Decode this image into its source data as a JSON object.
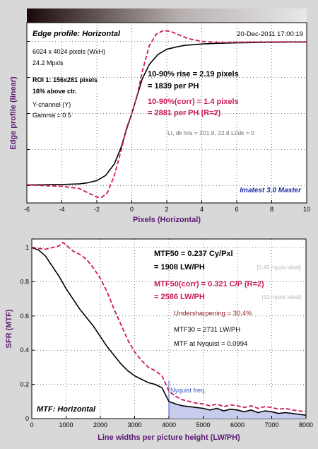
{
  "chart_data": [
    {
      "type": "line",
      "title": "Edge profile: Horizontal",
      "xlabel": "Pixels (Horizontal)",
      "ylabel": "Edge profile (linear)",
      "xlim": [
        -6,
        10
      ],
      "x_ticks": [
        -6,
        -4,
        -2,
        0,
        2,
        4,
        6,
        8,
        10
      ],
      "grid": true,
      "series": [
        {
          "color": "#000000",
          "style": "solid",
          "x": [
            -6,
            -5,
            -4,
            -3,
            -2.5,
            -2,
            -1.5,
            -1,
            -0.6,
            -0.3,
            0,
            0.3,
            0.6,
            1,
            1.5,
            2,
            2.5,
            3,
            4,
            5,
            6,
            7,
            8,
            9,
            10
          ],
          "y": [
            0.005,
            0.006,
            0.008,
            0.012,
            0.02,
            0.035,
            0.07,
            0.15,
            0.27,
            0.39,
            0.5,
            0.62,
            0.74,
            0.84,
            0.91,
            0.945,
            0.96,
            0.972,
            0.982,
            0.987,
            0.99,
            0.992,
            0.994,
            0.995,
            0.995
          ]
        },
        {
          "color": "#cc1a5a",
          "style": "dashed",
          "x": [
            -6,
            -5,
            -4,
            -3,
            -2.5,
            -2,
            -1.7,
            -1.4,
            -1,
            -0.6,
            -0.3,
            0,
            0.3,
            0.6,
            1,
            1.4,
            1.8,
            2.2,
            2.7,
            3.2,
            4,
            5,
            6,
            7,
            8,
            9,
            10
          ],
          "y": [
            0.005,
            0.0,
            -0.005,
            -0.02,
            -0.05,
            -0.08,
            -0.08,
            -0.05,
            0.07,
            0.25,
            0.4,
            0.5,
            0.62,
            0.79,
            0.97,
            1.05,
            1.075,
            1.07,
            1.045,
            1.02,
            1.0,
            0.992,
            0.994,
            0.995,
            0.996,
            0.997,
            0.997
          ]
        }
      ],
      "annotations": {
        "date": "20-Dec-2011 17:00:19",
        "image_size": "6024 x 4024 pixels (WxH)",
        "mpxls": "24.2 Mpxls",
        "roi": "ROI 1:  156x281 pixels",
        "roi_pos": "16% above ctr.",
        "channel": "Y-channel  (Y)",
        "gamma": "Gamma = 0.5",
        "rise_pixels": "10-90% rise = 2.19 pixels",
        "rise_ph": "= 1839 per PH",
        "corr_pixels": "10-90%(corr) = 1.4 pixels",
        "corr_ph": "= 2881 per PH  (R=2)",
        "levels": "Lt, dk lvls = 201.9, 22.8   Lt/dk = 0",
        "brand": "Imatest 3.0 Master"
      }
    },
    {
      "type": "line",
      "title": "MTF: Horizontal",
      "xlabel": "Line widths per picture height (LW/PH)",
      "ylabel": "SFR (MTF)",
      "xlim": [
        0,
        8000
      ],
      "ylim": [
        0,
        1.05
      ],
      "x_ticks": [
        0,
        1000,
        2000,
        3000,
        4000,
        5000,
        6000,
        7000,
        8000
      ],
      "y_ticks": [
        0,
        0.2,
        0.4,
        0.6,
        0.8,
        1
      ],
      "grid": true,
      "series": [
        {
          "color": "#000000",
          "style": "solid",
          "x": [
            0,
            200,
            400,
            600,
            800,
            1000,
            1200,
            1400,
            1600,
            1800,
            2000,
            2200,
            2400,
            2600,
            2800,
            3000,
            3200,
            3400,
            3600,
            3800,
            4000,
            4200,
            4400,
            4600,
            4800,
            5000,
            5200,
            5400,
            5600,
            5800,
            6000,
            6200,
            6400,
            6600,
            6800,
            7000,
            7200,
            7400,
            7600,
            7800,
            8000
          ],
          "y": [
            1.0,
            0.985,
            0.95,
            0.89,
            0.83,
            0.76,
            0.7,
            0.64,
            0.59,
            0.54,
            0.48,
            0.42,
            0.37,
            0.32,
            0.28,
            0.25,
            0.23,
            0.21,
            0.2,
            0.18,
            0.1,
            0.085,
            0.075,
            0.07,
            0.065,
            0.06,
            0.05,
            0.06,
            0.045,
            0.055,
            0.05,
            0.04,
            0.05,
            0.035,
            0.045,
            0.04,
            0.03,
            0.035,
            0.03,
            0.025,
            0.02
          ]
        },
        {
          "color": "#cc1a5a",
          "style": "dashed",
          "x": [
            0,
            200,
            400,
            600,
            800,
            900,
            1000,
            1200,
            1400,
            1600,
            1800,
            2000,
            2200,
            2400,
            2600,
            2800,
            3000,
            3200,
            3400,
            3600,
            3800,
            4000,
            4200,
            4400,
            4600,
            4800,
            5000,
            5200,
            5400,
            5600,
            5800,
            6000,
            6200,
            6400,
            6600,
            6800,
            7000,
            7200,
            7400,
            7600,
            7800,
            8000
          ],
          "y": [
            1.0,
            0.995,
            0.99,
            1.0,
            1.01,
            1.03,
            1.015,
            0.98,
            0.96,
            0.93,
            0.88,
            0.82,
            0.74,
            0.64,
            0.55,
            0.46,
            0.39,
            0.34,
            0.3,
            0.28,
            0.25,
            0.16,
            0.13,
            0.11,
            0.1,
            0.09,
            0.085,
            0.075,
            0.085,
            0.07,
            0.08,
            0.075,
            0.065,
            0.075,
            0.06,
            0.07,
            0.065,
            0.055,
            0.06,
            0.05,
            0.045,
            0.04
          ]
        }
      ],
      "nyquist": {
        "x": 4000,
        "label": "Nyquist freq."
      },
      "annotations": {
        "mtf50": "MTF50 = 0.237 Cy/Pxl",
        "mtf50_lw": "= 1908 LW/PH",
        "mtf50_ideal": "[5.45 mpxls ideal]",
        "mtf50corr": "MTF50(corr) = 0.321 C/P  (R=2)",
        "mtf50corr_lw": "= 2586 LW/PH",
        "mtf50corr_ideal": "[10 mpxls ideal]",
        "undersharp": "Undersharpening = 30.4%",
        "mtf30": "MTF30 = 2731 LW/PH",
        "nyq_mtf": "MTF at Nyquist = 0.0994"
      }
    }
  ],
  "colors": {
    "black_curve": "#000000",
    "corrected_curve": "#cc1a5a",
    "axis_label": "#5a1a72",
    "nyquist_line": "#3a55c0",
    "nyquist_fill": "#c8ccec",
    "brand": "#1e2ea8",
    "levels_text": "#707070",
    "undersharp_text": "#8b1818"
  }
}
